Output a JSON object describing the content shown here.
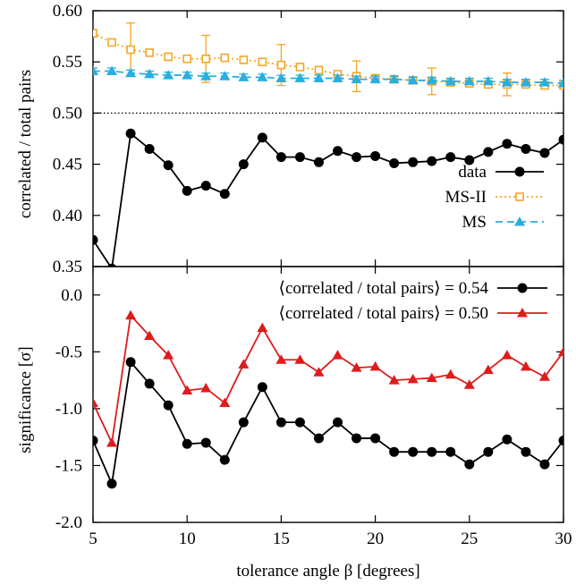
{
  "chart_data": [
    {
      "type": "line",
      "ylabel": "correlated / total pairs",
      "xlim": [
        5,
        30
      ],
      "ylim": [
        0.35,
        0.6
      ],
      "yticks": [
        0.35,
        0.4,
        0.45,
        0.5,
        0.55,
        0.6
      ],
      "ytick_labels": [
        "0.35",
        "0.40",
        "0.45",
        "0.50",
        "0.55",
        "0.60"
      ],
      "reference_line": 0.5,
      "legend_position": "lower-right",
      "series": [
        {
          "name": "data",
          "color": "#000000",
          "marker": "circle",
          "style": "solid",
          "x": [
            5,
            6,
            7,
            8,
            9,
            10,
            11,
            12,
            13,
            14,
            15,
            16,
            17,
            18,
            19,
            20,
            21,
            22,
            23,
            24,
            25,
            26,
            27,
            28,
            29,
            30
          ],
          "values": [
            0.376,
            0.348,
            0.48,
            0.465,
            0.449,
            0.424,
            0.429,
            0.421,
            0.45,
            0.476,
            0.457,
            0.457,
            0.452,
            0.463,
            0.457,
            0.458,
            0.451,
            0.452,
            0.453,
            0.457,
            0.454,
            0.462,
            0.47,
            0.465,
            0.461,
            0.474
          ]
        },
        {
          "name": "MS-II",
          "color": "#f5a623",
          "marker": "open-square",
          "style": "dotted",
          "x": [
            5,
            6,
            7,
            8,
            9,
            10,
            11,
            12,
            13,
            14,
            15,
            16,
            17,
            18,
            19,
            20,
            21,
            22,
            23,
            24,
            25,
            26,
            27,
            28,
            29,
            30
          ],
          "values": [
            0.578,
            0.569,
            0.562,
            0.559,
            0.555,
            0.553,
            0.553,
            0.554,
            0.552,
            0.55,
            0.547,
            0.545,
            0.542,
            0.538,
            0.536,
            0.534,
            0.533,
            0.532,
            0.531,
            0.53,
            0.529,
            0.528,
            0.528,
            0.528,
            0.527,
            0.527
          ],
          "errors": [
            0,
            0,
            0.026,
            0,
            0,
            0,
            0.023,
            0,
            0,
            0,
            0.02,
            0,
            0,
            0,
            0.015,
            0,
            0,
            0,
            0.013,
            0,
            0,
            0,
            0.011,
            0,
            0,
            0
          ]
        },
        {
          "name": "MS",
          "color": "#29aee0",
          "marker": "triangle",
          "style": "dashed",
          "x": [
            5,
            6,
            7,
            8,
            9,
            10,
            11,
            12,
            13,
            14,
            15,
            16,
            17,
            18,
            19,
            20,
            21,
            22,
            23,
            24,
            25,
            26,
            27,
            28,
            29,
            30
          ],
          "values": [
            0.541,
            0.541,
            0.539,
            0.538,
            0.537,
            0.537,
            0.536,
            0.536,
            0.535,
            0.535,
            0.534,
            0.534,
            0.534,
            0.534,
            0.533,
            0.533,
            0.533,
            0.532,
            0.532,
            0.531,
            0.531,
            0.531,
            0.53,
            0.53,
            0.53,
            0.529
          ],
          "errors": [
            0.003,
            0.003,
            0.003,
            0.003,
            0.003,
            0.003,
            0.003,
            0.003,
            0.003,
            0.003,
            0.003,
            0.003,
            0.003,
            0.003,
            0.003,
            0.003,
            0.003,
            0.003,
            0.003,
            0.003,
            0.003,
            0.003,
            0.003,
            0.003,
            0.003,
            0.003
          ]
        }
      ]
    },
    {
      "type": "line",
      "xlabel": "tolerance angle β [degrees]",
      "ylabel": "significance  [σ]",
      "xlim": [
        5,
        30
      ],
      "ylim": [
        -2.0,
        0.25
      ],
      "xticks": [
        5,
        10,
        15,
        20,
        25,
        30
      ],
      "xtick_labels": [
        "5",
        "10",
        "15",
        "20",
        "25",
        "30"
      ],
      "yticks": [
        -2.0,
        -1.5,
        -1.0,
        -0.5,
        0.0
      ],
      "ytick_labels": [
        "-2.0",
        "-1.5",
        "-1.0",
        "-0.5",
        "0.0"
      ],
      "legend_position": "top-right",
      "series": [
        {
          "name": "⟨correlated / total pairs⟩ = 0.54",
          "color": "#000000",
          "marker": "circle",
          "style": "solid",
          "x": [
            5,
            6,
            7,
            8,
            9,
            10,
            11,
            12,
            13,
            14,
            15,
            16,
            17,
            18,
            19,
            20,
            21,
            22,
            23,
            24,
            25,
            26,
            27,
            28,
            29,
            30
          ],
          "values": [
            -1.28,
            -1.66,
            -0.59,
            -0.78,
            -0.97,
            -1.31,
            -1.3,
            -1.45,
            -1.12,
            -0.81,
            -1.12,
            -1.12,
            -1.26,
            -1.12,
            -1.26,
            -1.26,
            -1.38,
            -1.38,
            -1.38,
            -1.38,
            -1.49,
            -1.38,
            -1.27,
            -1.38,
            -1.49,
            -1.28
          ]
        },
        {
          "name": "⟨correlated / total pairs⟩ = 0.50",
          "color": "#dd1c1c",
          "marker": "triangle",
          "style": "solid",
          "x": [
            5,
            6,
            7,
            8,
            9,
            10,
            11,
            12,
            13,
            14,
            15,
            16,
            17,
            18,
            19,
            20,
            21,
            22,
            23,
            24,
            25,
            26,
            27,
            28,
            29,
            30
          ],
          "values": [
            -0.95,
            -1.3,
            -0.18,
            -0.36,
            -0.53,
            -0.84,
            -0.82,
            -0.95,
            -0.61,
            -0.29,
            -0.57,
            -0.57,
            -0.68,
            -0.53,
            -0.64,
            -0.63,
            -0.75,
            -0.74,
            -0.73,
            -0.7,
            -0.79,
            -0.66,
            -0.53,
            -0.63,
            -0.72,
            -0.5
          ]
        }
      ]
    }
  ]
}
